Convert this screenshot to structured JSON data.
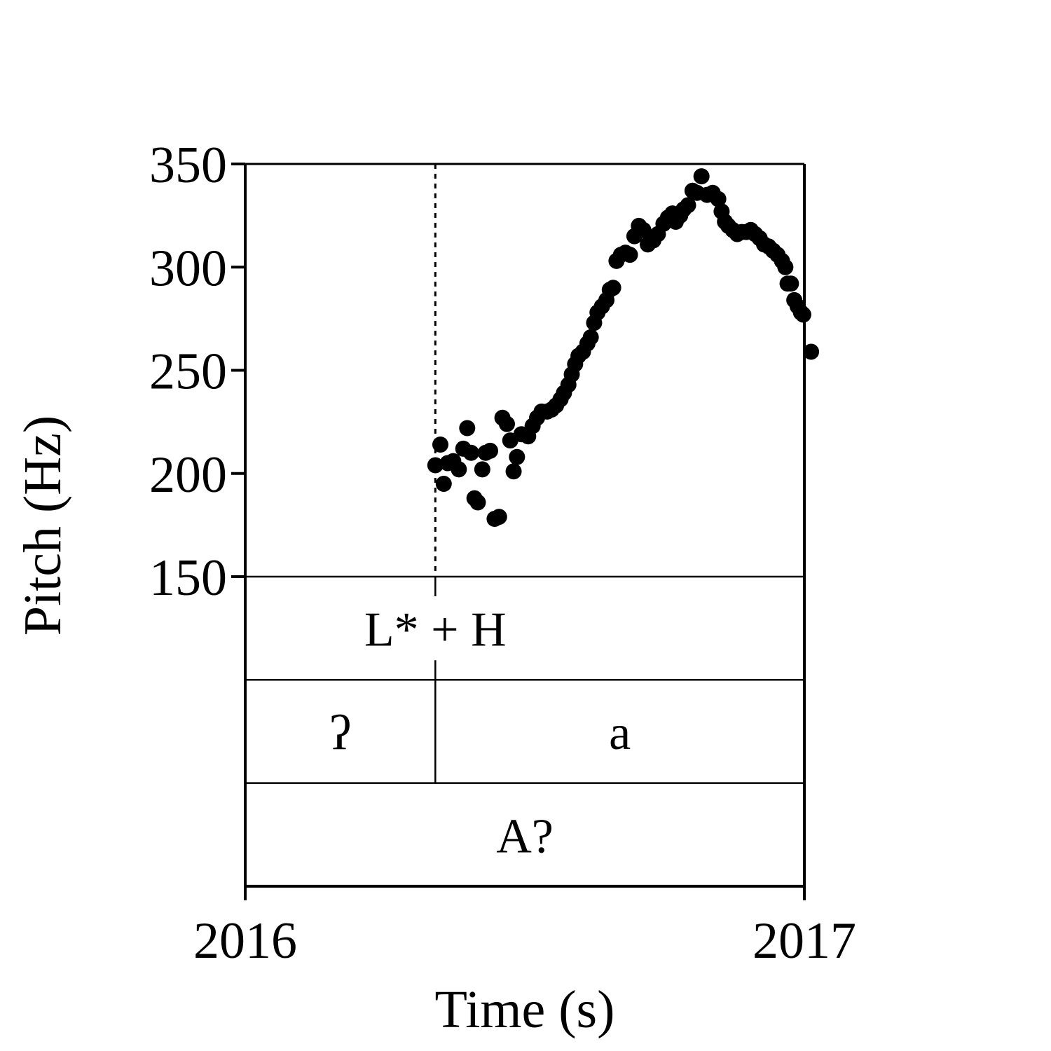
{
  "chart_data": {
    "type": "scatter",
    "xlabel": "Time (s)",
    "ylabel": "Pitch (Hz)",
    "xlim": [
      2016,
      2017
    ],
    "ylim": [
      150,
      350
    ],
    "xticks": [
      "2016",
      "2017"
    ],
    "yticks": [
      150,
      200,
      250,
      300,
      350
    ],
    "grid": false,
    "marker_color": "#000000",
    "boundary_time": 2016.34,
    "annotation_tiers": [
      {
        "segments": [
          {
            "start": 2016,
            "end": 2017,
            "label": "L* + H",
            "label_at": 2016.34
          }
        ]
      },
      {
        "segments": [
          {
            "start": 2016,
            "end": 2016.34,
            "label": "ʔ"
          },
          {
            "start": 2016.34,
            "end": 2017,
            "label": "a"
          }
        ]
      },
      {
        "segments": [
          {
            "start": 2016,
            "end": 2017,
            "label": "A?"
          }
        ]
      }
    ],
    "series": [
      {
        "points": [
          [
            2016.34,
            204
          ],
          [
            2016.349,
            214
          ],
          [
            2016.355,
            195
          ],
          [
            2016.362,
            205
          ],
          [
            2016.372,
            206
          ],
          [
            2016.382,
            202
          ],
          [
            2016.39,
            212
          ],
          [
            2016.397,
            222
          ],
          [
            2016.404,
            210
          ],
          [
            2016.41,
            188
          ],
          [
            2016.416,
            186
          ],
          [
            2016.424,
            202
          ],
          [
            2016.43,
            210
          ],
          [
            2016.438,
            211
          ],
          [
            2016.446,
            178
          ],
          [
            2016.454,
            179
          ],
          [
            2016.46,
            227
          ],
          [
            2016.468,
            224
          ],
          [
            2016.474,
            216
          ],
          [
            2016.48,
            201
          ],
          [
            2016.486,
            208
          ],
          [
            2016.494,
            219
          ],
          [
            2016.506,
            218
          ],
          [
            2016.514,
            223
          ],
          [
            2016.522,
            227
          ],
          [
            2016.53,
            230
          ],
          [
            2016.54,
            230
          ],
          [
            2016.548,
            231
          ],
          [
            2016.556,
            233
          ],
          [
            2016.564,
            236
          ],
          [
            2016.57,
            239
          ],
          [
            2016.578,
            243
          ],
          [
            2016.584,
            248
          ],
          [
            2016.59,
            253
          ],
          [
            2016.596,
            257
          ],
          [
            2016.604,
            259
          ],
          [
            2016.612,
            263
          ],
          [
            2016.618,
            266
          ],
          [
            2016.624,
            273
          ],
          [
            2016.63,
            278
          ],
          [
            2016.638,
            281
          ],
          [
            2016.646,
            284
          ],
          [
            2016.652,
            289
          ],
          [
            2016.658,
            290
          ],
          [
            2016.664,
            303
          ],
          [
            2016.672,
            306
          ],
          [
            2016.68,
            307
          ],
          [
            2016.688,
            306
          ],
          [
            2016.696,
            315
          ],
          [
            2016.704,
            320
          ],
          [
            2016.712,
            318
          ],
          [
            2016.72,
            311
          ],
          [
            2016.73,
            313
          ],
          [
            2016.738,
            316
          ],
          [
            2016.748,
            321
          ],
          [
            2016.756,
            324
          ],
          [
            2016.764,
            326
          ],
          [
            2016.77,
            322
          ],
          [
            2016.778,
            325
          ],
          [
            2016.784,
            328
          ],
          [
            2016.792,
            330
          ],
          [
            2016.8,
            337
          ],
          [
            2016.808,
            336
          ],
          [
            2016.816,
            344
          ],
          [
            2016.826,
            335
          ],
          [
            2016.836,
            336
          ],
          [
            2016.846,
            333
          ],
          [
            2016.852,
            327
          ],
          [
            2016.858,
            322
          ],
          [
            2016.864,
            320
          ],
          [
            2016.872,
            318
          ],
          [
            2016.88,
            316
          ],
          [
            2016.888,
            317
          ],
          [
            2016.896,
            317
          ],
          [
            2016.904,
            318
          ],
          [
            2016.912,
            316
          ],
          [
            2016.92,
            314
          ],
          [
            2016.928,
            311
          ],
          [
            2016.936,
            310
          ],
          [
            2016.944,
            308
          ],
          [
            2016.952,
            306
          ],
          [
            2016.96,
            303
          ],
          [
            2016.966,
            300
          ],
          [
            2016.97,
            292
          ],
          [
            2016.976,
            292
          ],
          [
            2016.982,
            284
          ],
          [
            2016.988,
            281
          ],
          [
            2016.994,
            278
          ],
          [
            2016.998,
            277
          ],
          [
            2017.012,
            259
          ]
        ]
      }
    ]
  }
}
